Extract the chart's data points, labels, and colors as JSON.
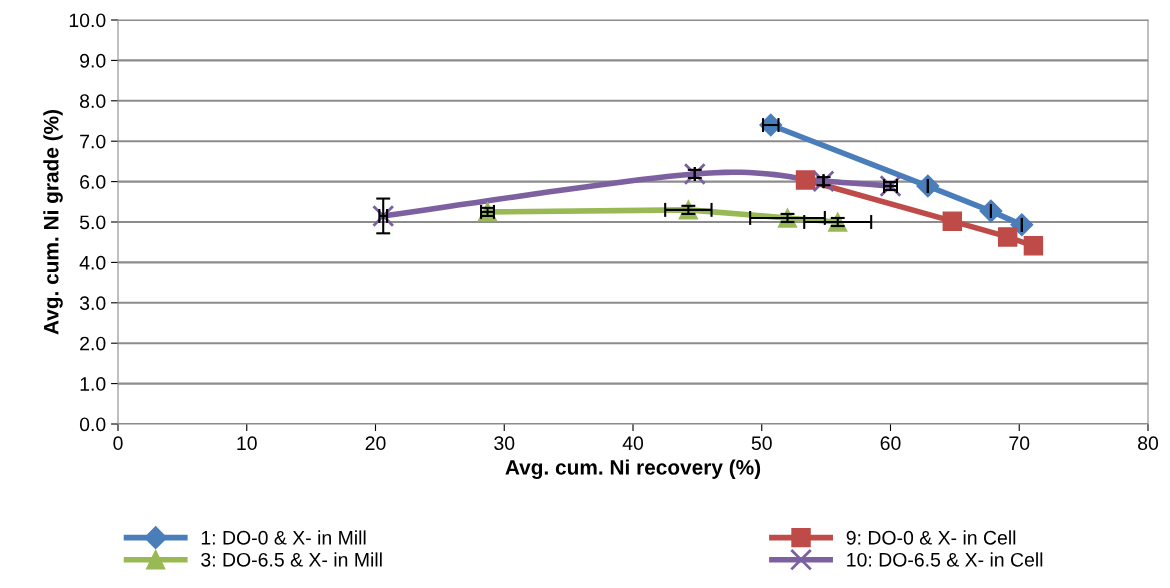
{
  "chart_data": {
    "type": "line",
    "xlabel": "Avg. cum. Ni recovery (%)",
    "ylabel": "Avg. cum. Ni grade (%)",
    "xlim": [
      0,
      80
    ],
    "xticks": [
      0,
      10,
      20,
      30,
      40,
      50,
      60,
      70,
      80
    ],
    "ylim": [
      0,
      10
    ],
    "yticks": [
      {
        "value": 0,
        "label": "0.0"
      },
      {
        "value": 1,
        "label": "1.0"
      },
      {
        "value": 2,
        "label": "2.0"
      },
      {
        "value": 3,
        "label": "3.0"
      },
      {
        "value": 4,
        "label": "4.0"
      },
      {
        "value": 5,
        "label": "5.0"
      },
      {
        "value": 6,
        "label": "6.0"
      },
      {
        "value": 7,
        "label": "7.0"
      },
      {
        "value": 8,
        "label": "8.0"
      },
      {
        "value": 9,
        "label": "9.0"
      },
      {
        "value": 10,
        "label": "10.0"
      }
    ],
    "grid": "y",
    "legend": "bottom",
    "series": [
      {
        "name": "1: DO-0 & X- in Mill",
        "color": "#4a7ebb",
        "marker": "diamond",
        "x": [
          50.7,
          62.9,
          67.8,
          70.2
        ],
        "values": [
          7.4,
          5.89,
          5.27,
          4.93
        ],
        "xerrors": [
          0.6,
          null,
          null,
          null
        ]
      },
      {
        "name": "9: DO-0 & X- in Cell",
        "color": "#be4b48",
        "marker": "square",
        "x": [
          53.4,
          64.8,
          69.1,
          71.1
        ],
        "values": [
          6.04,
          5.02,
          4.63,
          4.41
        ]
      },
      {
        "name": "3: DO-6.5 & X- in Mill",
        "color": "#98b954",
        "marker": "triangle",
        "x": [
          28.7,
          44.3,
          52.0,
          55.9
        ],
        "values": [
          5.25,
          5.3,
          5.1,
          5.0
        ],
        "xerrors": [
          0.5,
          1.8,
          2.9,
          2.6
        ],
        "errors": [
          0.1,
          0.1,
          0.1,
          0.1
        ]
      },
      {
        "name": "10: DO-6.5 & X- in Cell",
        "color": "#7d60a0",
        "marker": "cross",
        "x": [
          20.6,
          44.8,
          54.8,
          60.0
        ],
        "values": [
          5.15,
          6.19,
          6.01,
          5.89
        ],
        "errors": [
          0.43,
          0.1,
          0.1,
          0.1
        ],
        "xerrors": [
          0.3,
          null,
          null,
          0.5
        ]
      }
    ]
  }
}
